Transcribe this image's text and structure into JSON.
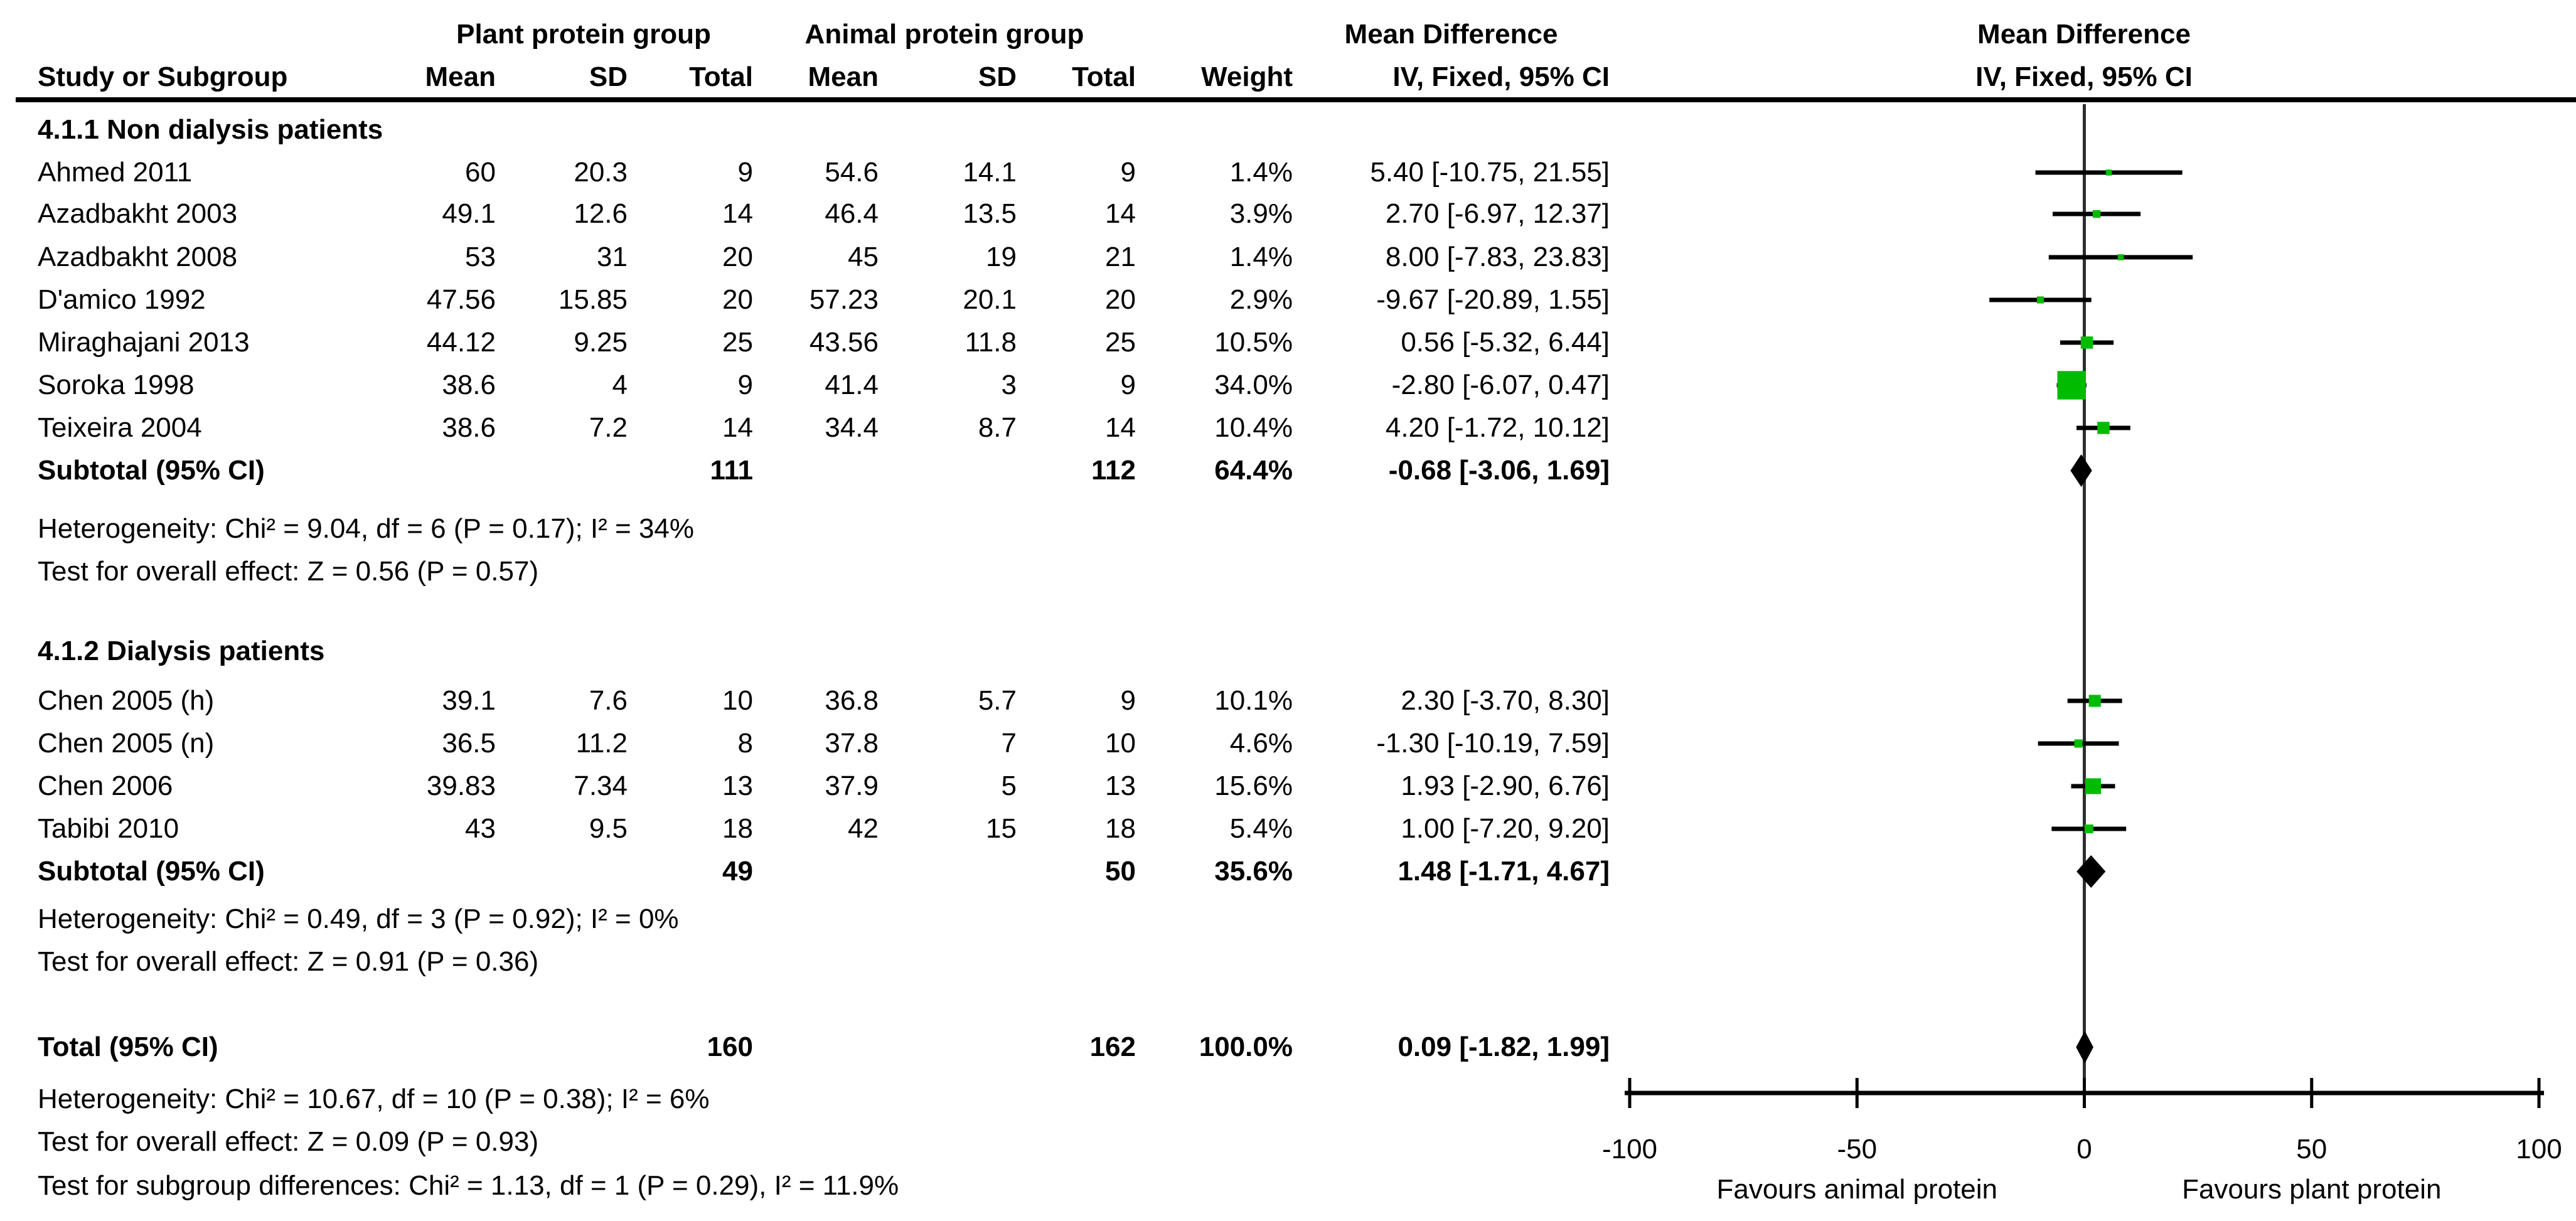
{
  "colors": {
    "marker": "#00bc00",
    "diamond": "#000000",
    "ci_line": "#000000",
    "zero_line": "#2e2e2e"
  },
  "header": {
    "group1": "Plant protein group",
    "group2": "Animal protein group",
    "md": "Mean Difference",
    "method": "IV, Fixed, 95% CI",
    "study": "Study or Subgroup",
    "mean": "Mean",
    "sd": "SD",
    "total": "Total",
    "weight": "Weight"
  },
  "sections": [
    {
      "title": "4.1.1 Non dialysis patients",
      "rows": [
        {
          "study": "Ahmed 2011",
          "mean1": "60",
          "sd1": "20.3",
          "total1": "9",
          "mean2": "54.6",
          "sd2": "14.1",
          "total2": "9",
          "weight": "1.4%",
          "ci": "5.40 [-10.75, 21.55]"
        },
        {
          "study": "Azadbakht 2003",
          "mean1": "49.1",
          "sd1": "12.6",
          "total1": "14",
          "mean2": "46.4",
          "sd2": "13.5",
          "total2": "14",
          "weight": "3.9%",
          "ci": "2.70 [-6.97, 12.37]"
        },
        {
          "study": "Azadbakht 2008",
          "mean1": "53",
          "sd1": "31",
          "total1": "20",
          "mean2": "45",
          "sd2": "19",
          "total2": "21",
          "weight": "1.4%",
          "ci": "8.00 [-7.83, 23.83]"
        },
        {
          "study": "D'amico 1992",
          "mean1": "47.56",
          "sd1": "15.85",
          "total1": "20",
          "mean2": "57.23",
          "sd2": "20.1",
          "total2": "20",
          "weight": "2.9%",
          "ci": "-9.67 [-20.89, 1.55]"
        },
        {
          "study": "Miraghajani 2013",
          "mean1": "44.12",
          "sd1": "9.25",
          "total1": "25",
          "mean2": "43.56",
          "sd2": "11.8",
          "total2": "25",
          "weight": "10.5%",
          "ci": "0.56 [-5.32, 6.44]"
        },
        {
          "study": "Soroka 1998",
          "mean1": "38.6",
          "sd1": "4",
          "total1": "9",
          "mean2": "41.4",
          "sd2": "3",
          "total2": "9",
          "weight": "34.0%",
          "ci": "-2.80 [-6.07, 0.47]"
        },
        {
          "study": "Teixeira 2004",
          "mean1": "38.6",
          "sd1": "7.2",
          "total1": "14",
          "mean2": "34.4",
          "sd2": "8.7",
          "total2": "14",
          "weight": "10.4%",
          "ci": "4.20 [-1.72, 10.12]"
        }
      ],
      "subtotal": {
        "label": "Subtotal (95% CI)",
        "total1": "111",
        "total2": "112",
        "weight": "64.4%",
        "ci": "-0.68 [-3.06, 1.69]"
      },
      "heterogeneity": "Heterogeneity: Chi² = 9.04, df = 6 (P = 0.17); I² = 34%",
      "overall_effect": "Test for overall effect: Z = 0.56 (P = 0.57)"
    },
    {
      "title": "4.1.2 Dialysis patients",
      "rows": [
        {
          "study": "Chen 2005 (h)",
          "mean1": "39.1",
          "sd1": "7.6",
          "total1": "10",
          "mean2": "36.8",
          "sd2": "5.7",
          "total2": "9",
          "weight": "10.1%",
          "ci": "2.30 [-3.70, 8.30]"
        },
        {
          "study": "Chen 2005 (n)",
          "mean1": "36.5",
          "sd1": "11.2",
          "total1": "8",
          "mean2": "37.8",
          "sd2": "7",
          "total2": "10",
          "weight": "4.6%",
          "ci": "-1.30 [-10.19, 7.59]"
        },
        {
          "study": "Chen 2006",
          "mean1": "39.83",
          "sd1": "7.34",
          "total1": "13",
          "mean2": "37.9",
          "sd2": "5",
          "total2": "13",
          "weight": "15.6%",
          "ci": "1.93 [-2.90, 6.76]"
        },
        {
          "study": "Tabibi 2010",
          "mean1": "43",
          "sd1": "9.5",
          "total1": "18",
          "mean2": "42",
          "sd2": "15",
          "total2": "18",
          "weight": "5.4%",
          "ci": "1.00 [-7.20, 9.20]"
        }
      ],
      "subtotal": {
        "label": "Subtotal (95% CI)",
        "total1": "49",
        "total2": "50",
        "weight": "35.6%",
        "ci": "1.48 [-1.71, 4.67]"
      },
      "heterogeneity": "Heterogeneity: Chi² = 0.49, df = 3 (P = 0.92); I² = 0%",
      "overall_effect": "Test for overall effect: Z = 0.91 (P = 0.36)"
    }
  ],
  "total": {
    "label": "Total (95% CI)",
    "total1": "160",
    "total2": "162",
    "weight": "100.0%",
    "ci": "0.09 [-1.82, 1.99]"
  },
  "total_heterogeneity": "Heterogeneity: Chi² = 10.67, df = 10 (P = 0.38); I² = 6%",
  "total_overall_effect": "Test for overall effect: Z = 0.09 (P = 0.93)",
  "subgroup_differences": "Test for subgroup differences: Chi² = 1.13, df = 1 (P = 0.29), I² = 11.9%",
  "chart_data": {
    "type": "forest",
    "effect_label": "Mean Difference",
    "method_label": "IV, Fixed, 95% CI",
    "xlim": [
      -100,
      100
    ],
    "ticks": [
      -100,
      -50,
      0,
      50,
      100
    ],
    "favours_left": "Favours animal protein",
    "favours_right": "Favours plant protein",
    "groups": [
      {
        "name": "4.1.1 Non dialysis patients",
        "studies": [
          {
            "name": "Ahmed 2011",
            "md": 5.4,
            "lo": -10.75,
            "hi": 21.55,
            "weight": 1.4
          },
          {
            "name": "Azadbakht 2003",
            "md": 2.7,
            "lo": -6.97,
            "hi": 12.37,
            "weight": 3.9
          },
          {
            "name": "Azadbakht 2008",
            "md": 8.0,
            "lo": -7.83,
            "hi": 23.83,
            "weight": 1.4
          },
          {
            "name": "D'amico 1992",
            "md": -9.67,
            "lo": -20.89,
            "hi": 1.55,
            "weight": 2.9
          },
          {
            "name": "Miraghajani 2013",
            "md": 0.56,
            "lo": -5.32,
            "hi": 6.44,
            "weight": 10.5
          },
          {
            "name": "Soroka 1998",
            "md": -2.8,
            "lo": -6.07,
            "hi": 0.47,
            "weight": 34.0
          },
          {
            "name": "Teixeira 2004",
            "md": 4.2,
            "lo": -1.72,
            "hi": 10.12,
            "weight": 10.4
          }
        ],
        "subtotal": {
          "md": -0.68,
          "lo": -3.06,
          "hi": 1.69,
          "weight": 64.4
        }
      },
      {
        "name": "4.1.2 Dialysis patients",
        "studies": [
          {
            "name": "Chen 2005 (h)",
            "md": 2.3,
            "lo": -3.7,
            "hi": 8.3,
            "weight": 10.1
          },
          {
            "name": "Chen 2005 (n)",
            "md": -1.3,
            "lo": -10.19,
            "hi": 7.59,
            "weight": 4.6
          },
          {
            "name": "Chen 2006",
            "md": 1.93,
            "lo": -2.9,
            "hi": 6.76,
            "weight": 15.6
          },
          {
            "name": "Tabibi 2010",
            "md": 1.0,
            "lo": -7.2,
            "hi": 9.2,
            "weight": 5.4
          }
        ],
        "subtotal": {
          "md": 1.48,
          "lo": -1.71,
          "hi": 4.67,
          "weight": 35.6
        }
      }
    ],
    "total": {
      "md": 0.09,
      "lo": -1.82,
      "hi": 1.99,
      "weight": 100.0
    }
  }
}
